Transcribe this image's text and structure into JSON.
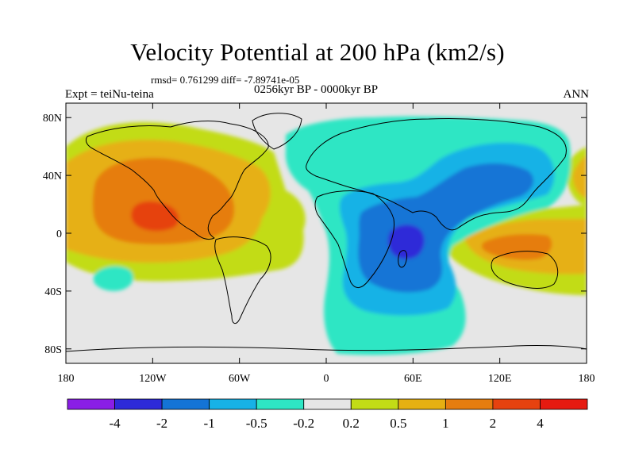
{
  "title": "Velocity Potential at 200 hPa (km2/s)",
  "stats": "rmsd= 0.761299 diff= -7.89741e-05",
  "period": "0256kyr BP - 0000kyr BP",
  "expt": "Expt = teiNu-teina",
  "season": "ANN",
  "chart_data": {
    "type": "filled-contour-map",
    "projection": "cylindrical equidistant",
    "lon_range": [
      -180,
      180
    ],
    "lat_range": [
      -90,
      90
    ],
    "lat_ticks": [
      {
        "value": 80,
        "label": "80N"
      },
      {
        "value": 40,
        "label": "40N"
      },
      {
        "value": 0,
        "label": "0"
      },
      {
        "value": -40,
        "label": "40S"
      },
      {
        "value": -80,
        "label": "80S"
      }
    ],
    "lon_ticks": [
      {
        "value": -180,
        "label": "180"
      },
      {
        "value": -120,
        "label": "120W"
      },
      {
        "value": -60,
        "label": "60W"
      },
      {
        "value": 0,
        "label": "0"
      },
      {
        "value": 60,
        "label": "60E"
      },
      {
        "value": 120,
        "label": "120E"
      },
      {
        "value": 180,
        "label": "180"
      }
    ],
    "levels": [
      "-4",
      "-2",
      "-1",
      "-0.5",
      "-0.2",
      "0.2",
      "0.5",
      "1",
      "2",
      "4"
    ],
    "colors": [
      "#8a1ee6",
      "#2d2ad8",
      "#1474d6",
      "#17b2e6",
      "#2ee6c4",
      "#e6e6e6",
      "#c2dc16",
      "#e6b012",
      "#e67d0f",
      "#e6420f",
      "#e61a10"
    ],
    "features": [
      {
        "name": "positive anomaly over North Pacific and central America",
        "center": [
          -120,
          10
        ],
        "peak_level": "2"
      },
      {
        "name": "negative anomaly over Indian Ocean / East Africa",
        "center": [
          55,
          -5
        ],
        "peak_level": "-4"
      },
      {
        "name": "negative anomaly over Asia",
        "center": [
          95,
          40
        ],
        "peak_level": "-1"
      },
      {
        "name": "positive anomaly over Indonesia",
        "center": [
          130,
          -10
        ],
        "peak_level": "1"
      }
    ]
  }
}
